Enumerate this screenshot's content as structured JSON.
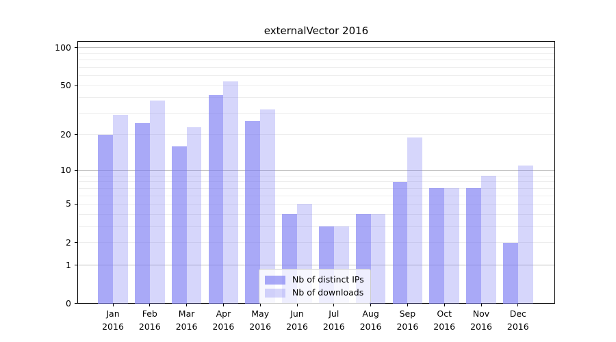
{
  "figure": {
    "title": "externalVector 2016"
  },
  "colors": {
    "bar_distinct_ips": "rgba(119,119,242,0.63)",
    "bar_downloads": "rgba(119,119,242,0.30)",
    "grid_major": "#bdbdbd",
    "grid_minor": "#ededed",
    "spine": "#000000",
    "text": "#000000",
    "legend_border": "#cccccc",
    "legend_bg": "rgba(255,255,255,0.8)",
    "background": "#ffffff"
  },
  "legend": {
    "items": [
      {
        "label": "Nb of distinct IPs",
        "color_key": "bar_distinct_ips"
      },
      {
        "label": "Nb of downloads",
        "color_key": "bar_downloads"
      }
    ]
  },
  "y_axis": {
    "scale": "log10(value+1)",
    "tick_values": [
      100,
      50,
      20,
      10,
      5,
      2,
      1,
      0
    ],
    "tick_labels": [
      "100",
      "50",
      "20",
      "10",
      "5",
      "2",
      "1",
      "0"
    ],
    "major_grid_values": [
      1,
      10,
      100
    ],
    "minor_grid_values": [
      2,
      3,
      4,
      5,
      6,
      7,
      8,
      9,
      20,
      30,
      40,
      50,
      60,
      70,
      80,
      90
    ]
  },
  "x_axis": {
    "categories": [
      {
        "line1": "Jan",
        "line2": "2016"
      },
      {
        "line1": "Feb",
        "line2": "2016"
      },
      {
        "line1": "Mar",
        "line2": "2016"
      },
      {
        "line1": "Apr",
        "line2": "2016"
      },
      {
        "line1": "May",
        "line2": "2016"
      },
      {
        "line1": "Jun",
        "line2": "2016"
      },
      {
        "line1": "Jul",
        "line2": "2016"
      },
      {
        "line1": "Aug",
        "line2": "2016"
      },
      {
        "line1": "Sep",
        "line2": "2016"
      },
      {
        "line1": "Oct",
        "line2": "2016"
      },
      {
        "line1": "Nov",
        "line2": "2016"
      },
      {
        "line1": "Dec",
        "line2": "2016"
      }
    ]
  },
  "chart_data": {
    "type": "bar",
    "title": "externalVector 2016",
    "categories": [
      "Jan 2016",
      "Feb 2016",
      "Mar 2016",
      "Apr 2016",
      "May 2016",
      "Jun 2016",
      "Jul 2016",
      "Aug 2016",
      "Sep 2016",
      "Oct 2016",
      "Nov 2016",
      "Dec 2016"
    ],
    "series": [
      {
        "name": "Nb of distinct IPs",
        "values": [
          20,
          25,
          16,
          42,
          26,
          4,
          3,
          4,
          8,
          7,
          7,
          2
        ]
      },
      {
        "name": "Nb of downloads",
        "values": [
          29,
          38,
          23,
          54,
          32,
          5,
          3,
          4,
          19,
          7,
          9,
          11
        ]
      }
    ],
    "xlabel": "",
    "ylabel": "",
    "y_scale": "log1p (positions proportional to log10(value+1))",
    "y_ticks": [
      0,
      1,
      2,
      5,
      10,
      20,
      50,
      100
    ],
    "ylim": [
      0,
      112
    ],
    "grid": "horizontal only; light minor lines at 2-9, 20-90; gray major lines at 1, 10, 100",
    "legend_position": "inside plot, lower center"
  }
}
